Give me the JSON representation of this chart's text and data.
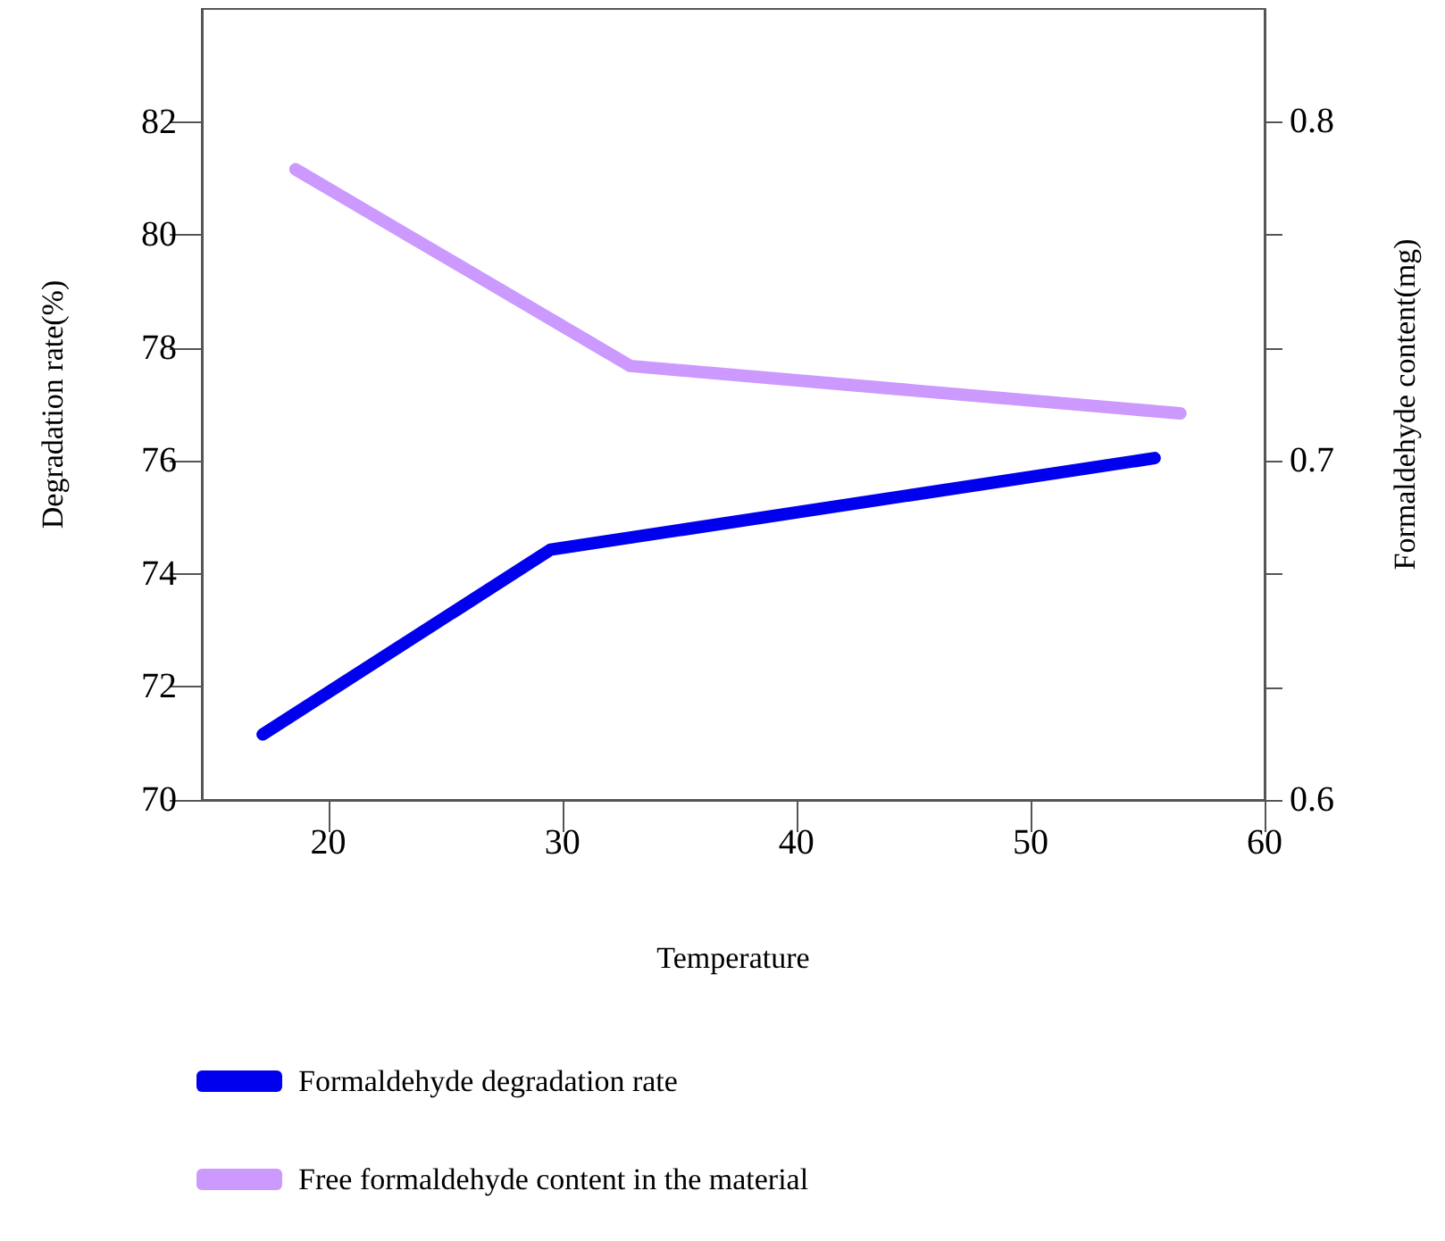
{
  "chart_data": {
    "type": "line",
    "xlabel": "Temperature",
    "ylabel": "Degradation rate(%)",
    "y2label": "Formaldehyde content(mg)",
    "xlim": [
      14.6,
      60
    ],
    "xticks": [
      20,
      30,
      40,
      50,
      60
    ],
    "ylim": [
      70,
      84
    ],
    "yticks": [
      70,
      72,
      74,
      76,
      78,
      80,
      82
    ],
    "y2lim": [
      0.6,
      0.8333
    ],
    "y2ticks": [
      0.6,
      {
        "value": 0.6333,
        "label": null
      },
      {
        "value": 0.6667,
        "label": null
      },
      0.7,
      {
        "value": 0.7333,
        "label": null
      },
      {
        "value": 0.7667,
        "label": null
      },
      0.8
    ],
    "grid": false,
    "legend": "bottom",
    "marker": "none",
    "line_style": "solid",
    "series": [
      {
        "name": "Formaldehyde degradation rate",
        "color": "#0000ee",
        "x": [
          17.2,
          29.5,
          55.3
        ],
        "values": [
          71.16,
          74.43,
          76.05
        ]
      },
      {
        "name": "Free formaldehyde content in the material",
        "color": "#cc99ff",
        "axis": "y2",
        "x": [
          18.6,
          32.9,
          56.4
        ],
        "values": [
          0.786,
          0.728,
          0.714
        ]
      }
    ]
  }
}
